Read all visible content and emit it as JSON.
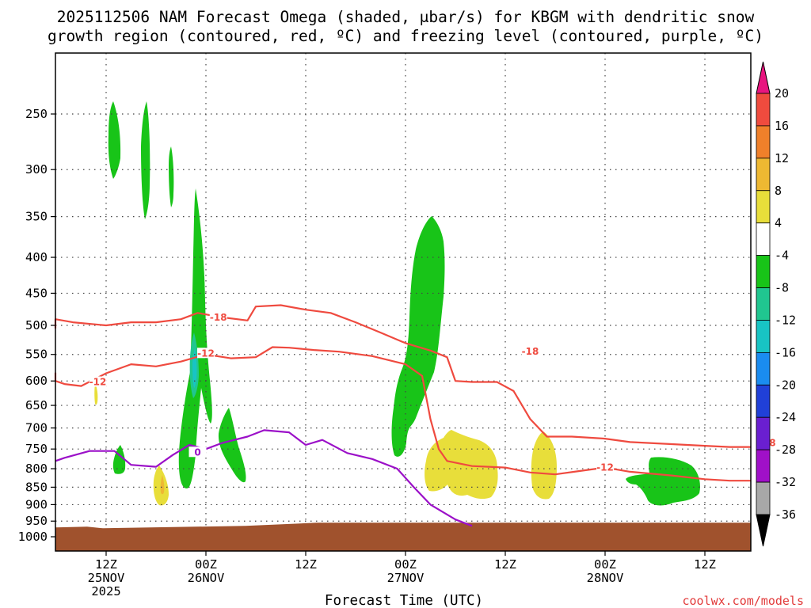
{
  "title": {
    "line1": "2025112506 NAM Forecast Omega (shaded, μbar/s) for KBGM with dendritic snow",
    "line2": "growth region (contoured, red, ºC) and freezing level (contoured, purple, ºC)"
  },
  "credit": "coolwx.com/models",
  "chart_data": {
    "type": "contour",
    "xlabel": "Forecast Time (UTC)",
    "ylabel": "",
    "y_scale": "log-pressure (hPa), inverted",
    "y_ticks": [
      250,
      300,
      350,
      400,
      450,
      500,
      550,
      600,
      650,
      700,
      750,
      800,
      850,
      900,
      950,
      1000
    ],
    "x_ticks": [
      {
        "time": "2025-11-25T12Z",
        "line1": "12Z",
        "line2": "25NOV",
        "line3": "2025"
      },
      {
        "time": "2025-11-26T00Z",
        "line1": "00Z",
        "line2": "26NOV",
        "line3": ""
      },
      {
        "time": "2025-11-26T12Z",
        "line1": "12Z",
        "line2": "",
        "line3": ""
      },
      {
        "time": "2025-11-27T00Z",
        "line1": "00Z",
        "line2": "27NOV",
        "line3": ""
      },
      {
        "time": "2025-11-27T12Z",
        "line1": "12Z",
        "line2": "",
        "line3": ""
      },
      {
        "time": "2025-11-28T00Z",
        "line1": "00Z",
        "line2": "28NOV",
        "line3": ""
      },
      {
        "time": "2025-11-28T12Z",
        "line1": "12Z",
        "line2": "",
        "line3": ""
      }
    ],
    "grid": true,
    "colorbar": {
      "levels": [
        20,
        16,
        12,
        8,
        4,
        -4,
        -8,
        -12,
        -16,
        -20,
        -24,
        -28,
        -32,
        -36
      ],
      "bins": [
        {
          "range": ">20",
          "color": "#e8157f"
        },
        {
          "range": "16 to 20",
          "color": "#f04b3e"
        },
        {
          "range": "12 to 16",
          "color": "#f0802a"
        },
        {
          "range": "8 to 12",
          "color": "#eeb832"
        },
        {
          "range": "4 to 8",
          "color": "#e8de3a"
        },
        {
          "range": "-4 to 4",
          "color": "#ffffff"
        },
        {
          "range": "-8 to -4",
          "color": "#18c418"
        },
        {
          "range": "-12 to -8",
          "color": "#20c690"
        },
        {
          "range": "-16 to -12",
          "color": "#18c4c4"
        },
        {
          "range": "-20 to -16",
          "color": "#1a8cf0"
        },
        {
          "range": "-24 to -20",
          "color": "#2040d8"
        },
        {
          "range": "-28 to -24",
          "color": "#6a1fd0"
        },
        {
          "range": "-32 to -28",
          "color": "#a010c8"
        },
        {
          "range": "-36 to -32",
          "color": "#a8a8a8"
        },
        {
          "range": "<-36",
          "color": "#000000"
        }
      ]
    },
    "contours": {
      "minus18": {
        "label": "-18",
        "color": "#ef4a3f",
        "points": [
          [
            "2025-11-25T03Z",
            505
          ],
          [
            "2025-11-25T05Z",
            490
          ],
          [
            "2025-11-25T08Z",
            495
          ],
          [
            "2025-11-25T12Z",
            500
          ],
          [
            "2025-11-25T15Z",
            495
          ],
          [
            "2025-11-25T18Z",
            495
          ],
          [
            "2025-11-25T21Z",
            490
          ],
          [
            "2025-11-25T23Z",
            480
          ],
          [
            "2025-11-26T02Z",
            487
          ],
          [
            "2025-11-26T05Z",
            492
          ],
          [
            "2025-11-26T06Z",
            470
          ],
          [
            "2025-11-26T09Z",
            468
          ],
          [
            "2025-11-26T12Z",
            475
          ],
          [
            "2025-11-26T15Z",
            480
          ],
          [
            "2025-11-26T18Z",
            495
          ],
          [
            "2025-11-26T21Z",
            512
          ],
          [
            "2025-11-27T00Z",
            530
          ],
          [
            "2025-11-27T03Z",
            543
          ],
          [
            "2025-11-27T05Z",
            555
          ],
          [
            "2025-11-27T06Z",
            600
          ],
          [
            "2025-11-27T08Z",
            602
          ],
          [
            "2025-11-27T11Z",
            602
          ],
          [
            "2025-11-27T13Z",
            620
          ],
          [
            "2025-11-27T15Z",
            680
          ],
          [
            "2025-11-27T17Z",
            720
          ],
          [
            "2025-11-27T20Z",
            720
          ],
          [
            "2025-11-28T00Z",
            725
          ],
          [
            "2025-11-28T03Z",
            733
          ],
          [
            "2025-11-28T08Z",
            738
          ],
          [
            "2025-11-28T12Z",
            742
          ],
          [
            "2025-11-28T15Z",
            745
          ],
          [
            "2025-11-28T19Z",
            745
          ]
        ]
      },
      "minus12": {
        "label": "-12",
        "color": "#ef4a3f",
        "points": [
          [
            "2025-11-25T03Z",
            584
          ],
          [
            "2025-11-25T05Z",
            600
          ],
          [
            "2025-11-25T07Z",
            606
          ],
          [
            "2025-11-25T09Z",
            610
          ],
          [
            "2025-11-25T12Z",
            585
          ],
          [
            "2025-11-25T15Z",
            568
          ],
          [
            "2025-11-25T18Z",
            572
          ],
          [
            "2025-11-25T21Z",
            563
          ],
          [
            "2025-11-26T00Z",
            550
          ],
          [
            "2025-11-26T03Z",
            557
          ],
          [
            "2025-11-26T06Z",
            555
          ],
          [
            "2025-11-26T08Z",
            537
          ],
          [
            "2025-11-26T10Z",
            538
          ],
          [
            "2025-11-26T13Z",
            542
          ],
          [
            "2025-11-26T16Z",
            545
          ],
          [
            "2025-11-26T20Z",
            553
          ],
          [
            "2025-11-27T00Z",
            568
          ],
          [
            "2025-11-27T02Z",
            590
          ],
          [
            "2025-11-27T03Z",
            680
          ],
          [
            "2025-11-27T04Z",
            750
          ],
          [
            "2025-11-27T05Z",
            780
          ],
          [
            "2025-11-27T08Z",
            793
          ],
          [
            "2025-11-27T12Z",
            797
          ],
          [
            "2025-11-27T15Z",
            810
          ],
          [
            "2025-11-27T18Z",
            815
          ],
          [
            "2025-11-27T21Z",
            806
          ],
          [
            "2025-11-28T00Z",
            797
          ],
          [
            "2025-11-28T03Z",
            808
          ],
          [
            "2025-11-28T08Z",
            818
          ],
          [
            "2025-11-28T12Z",
            828
          ],
          [
            "2025-11-28T15Z",
            832
          ],
          [
            "2025-11-28T19Z",
            832
          ]
        ]
      },
      "zero": {
        "label": "0",
        "color": "#9b10c8",
        "points": [
          [
            "2025-11-25T03Z",
            780
          ],
          [
            "2025-11-25T07Z",
            772
          ],
          [
            "2025-11-25T10Z",
            755
          ],
          [
            "2025-11-25T13Z",
            755
          ],
          [
            "2025-11-25T15Z",
            790
          ],
          [
            "2025-11-25T18Z",
            795
          ],
          [
            "2025-11-25T20Z",
            765
          ],
          [
            "2025-11-25T22Z",
            740
          ],
          [
            "2025-11-26T00Z",
            750
          ],
          [
            "2025-11-26T02Z",
            735
          ],
          [
            "2025-11-26T05Z",
            720
          ],
          [
            "2025-11-26T07Z",
            705
          ],
          [
            "2025-11-26T10Z",
            710
          ],
          [
            "2025-11-26T12Z",
            740
          ],
          [
            "2025-11-26T14Z",
            728
          ],
          [
            "2025-11-26T17Z",
            760
          ],
          [
            "2025-11-26T20Z",
            775
          ],
          [
            "2025-11-26T23Z",
            800
          ],
          [
            "2025-11-27T01Z",
            850
          ],
          [
            "2025-11-27T03Z",
            900
          ],
          [
            "2025-11-27T06Z",
            945
          ],
          [
            "2025-11-27T08Z",
            965
          ]
        ]
      }
    },
    "ground_level_hpa": 970
  }
}
